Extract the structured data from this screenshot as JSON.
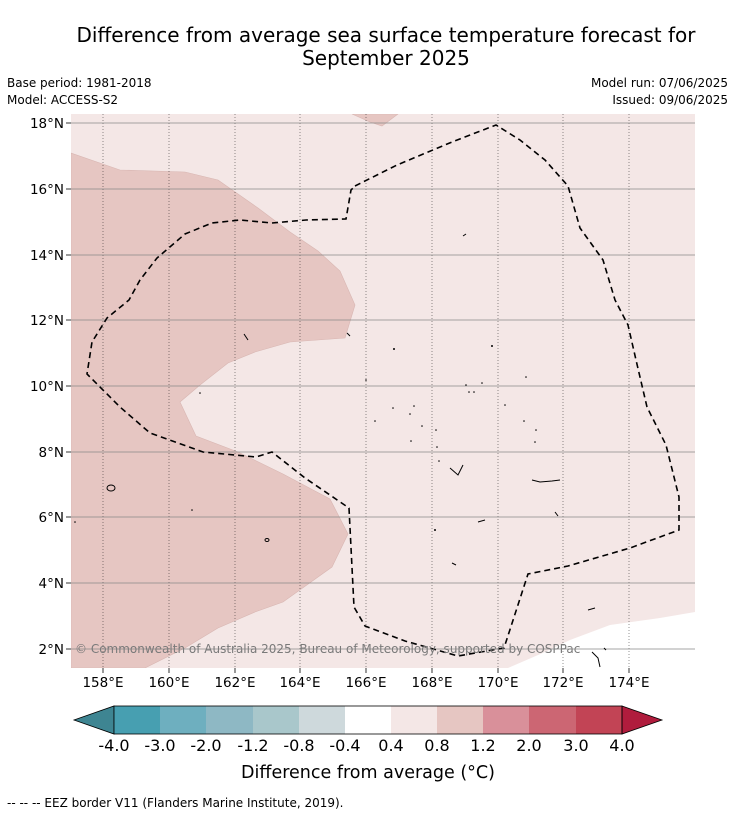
{
  "header": {
    "title_line1": "Difference from average sea surface temperature forecast for",
    "title_line2": "September 2025",
    "base_period": "Base period: 1981-2018",
    "model": "Model: ACCESS-S2",
    "model_run": "Model run: 07/06/2025",
    "issued": "Issued: 09/06/2025"
  },
  "map": {
    "lat_labels": [
      "18°N",
      "16°N",
      "14°N",
      "12°N",
      "10°N",
      "8°N",
      "6°N",
      "4°N",
      "2°N"
    ],
    "lon_labels": [
      "158°E",
      "160°E",
      "162°E",
      "164°E",
      "166°E",
      "168°E",
      "170°E",
      "172°E",
      "174°E"
    ],
    "lat_range": [
      1.4,
      18.2
    ],
    "lon_range": [
      157.0,
      176.0
    ],
    "copyright": "© Commonwealth of Australia 2025, Bureau of Meteorology, supported by COSPPac",
    "colors": {
      "anomaly_0.4_0.8": "#f4e7e6",
      "anomaly_0.8_1.2": "#e6c6c2",
      "anomaly_-0.4_0.4": "#ffffff"
    }
  },
  "colorbar": {
    "tick_labels": [
      "-4.0",
      "-3.0",
      "-2.0",
      "-1.2",
      "-0.8",
      "-0.4",
      "0.4",
      "0.8",
      "1.2",
      "2.0",
      "3.0",
      "4.0"
    ],
    "colors": [
      "#3e8592",
      "#479fb1",
      "#6eafbf",
      "#8eb8c4",
      "#a9c7cb",
      "#ced9dc",
      "#ffffff",
      "#f4e7e6",
      "#e6c6c2",
      "#d9909a",
      "#cc6673",
      "#c24455",
      "#b01c3d"
    ],
    "label": "Difference from average (°C)"
  },
  "footer": {
    "legend_text": "--  --  -- EEZ border V11 (Flanders Marine Institute, 2019)."
  }
}
